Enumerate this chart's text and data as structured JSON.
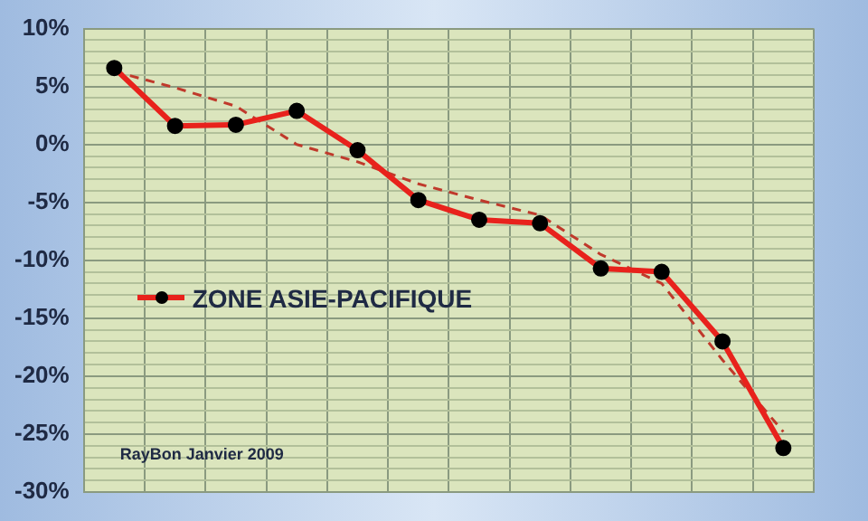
{
  "chart_data": {
    "type": "line",
    "categories": [
      null,
      null,
      null,
      null,
      null,
      null,
      null,
      null,
      null,
      null,
      null,
      null
    ],
    "series": [
      {
        "name": "ZONE ASIE-PACIFIQUE",
        "color": "#e8221c",
        "values": [
          6.6,
          1.6,
          1.7,
          2.9,
          -0.5,
          -4.8,
          -6.5,
          -6.8,
          -10.7,
          -11,
          -17,
          -26.2
        ],
        "marker": "circle",
        "line_style": "solid"
      },
      {
        "color": "#c0392b",
        "values": [
          6.3,
          4.9,
          3.3,
          0,
          -1.5,
          -3.4,
          -4.8,
          -6.1,
          -9.5,
          -12,
          -18.6,
          -24.8
        ],
        "marker": "none",
        "line_style": "dashed"
      }
    ],
    "ylim": [
      -30,
      10
    ],
    "yticks": [
      {
        "value": -30,
        "label": "-30%"
      },
      {
        "value": -29,
        "label": null
      },
      {
        "value": -28,
        "label": null
      },
      {
        "value": -27,
        "label": null
      },
      {
        "value": -26,
        "label": null
      },
      {
        "value": -25,
        "label": "-25%"
      },
      {
        "value": -24,
        "label": null
      },
      {
        "value": -23,
        "label": null
      },
      {
        "value": -22,
        "label": null
      },
      {
        "value": -21,
        "label": null
      },
      {
        "value": -20,
        "label": "-20%"
      },
      {
        "value": -19,
        "label": null
      },
      {
        "value": -18,
        "label": null
      },
      {
        "value": -17,
        "label": null
      },
      {
        "value": -16,
        "label": null
      },
      {
        "value": -15,
        "label": "-15%"
      },
      {
        "value": -14,
        "label": null
      },
      {
        "value": -13,
        "label": null
      },
      {
        "value": -12,
        "label": null
      },
      {
        "value": -11,
        "label": null
      },
      {
        "value": -10,
        "label": "-10%"
      },
      {
        "value": -9,
        "label": null
      },
      {
        "value": -8,
        "label": null
      },
      {
        "value": -7,
        "label": null
      },
      {
        "value": -6,
        "label": null
      },
      {
        "value": -5,
        "label": "-5%"
      },
      {
        "value": -4,
        "label": null
      },
      {
        "value": -3,
        "label": null
      },
      {
        "value": -2,
        "label": null
      },
      {
        "value": -1,
        "label": null
      },
      {
        "value": 0,
        "label": "0%"
      },
      {
        "value": 1,
        "label": null
      },
      {
        "value": 2,
        "label": null
      },
      {
        "value": 3,
        "label": null
      },
      {
        "value": 4,
        "label": null
      },
      {
        "value": 5,
        "label": "5%"
      },
      {
        "value": 6,
        "label": null
      },
      {
        "value": 7,
        "label": null
      },
      {
        "value": 8,
        "label": null
      },
      {
        "value": 9,
        "label": null
      },
      {
        "value": 10,
        "label": "10%"
      }
    ],
    "grid": true,
    "legend": "left",
    "tick_labels": "y",
    "annotations": [
      {
        "text": "RayBon Janvier 2009"
      }
    ]
  }
}
